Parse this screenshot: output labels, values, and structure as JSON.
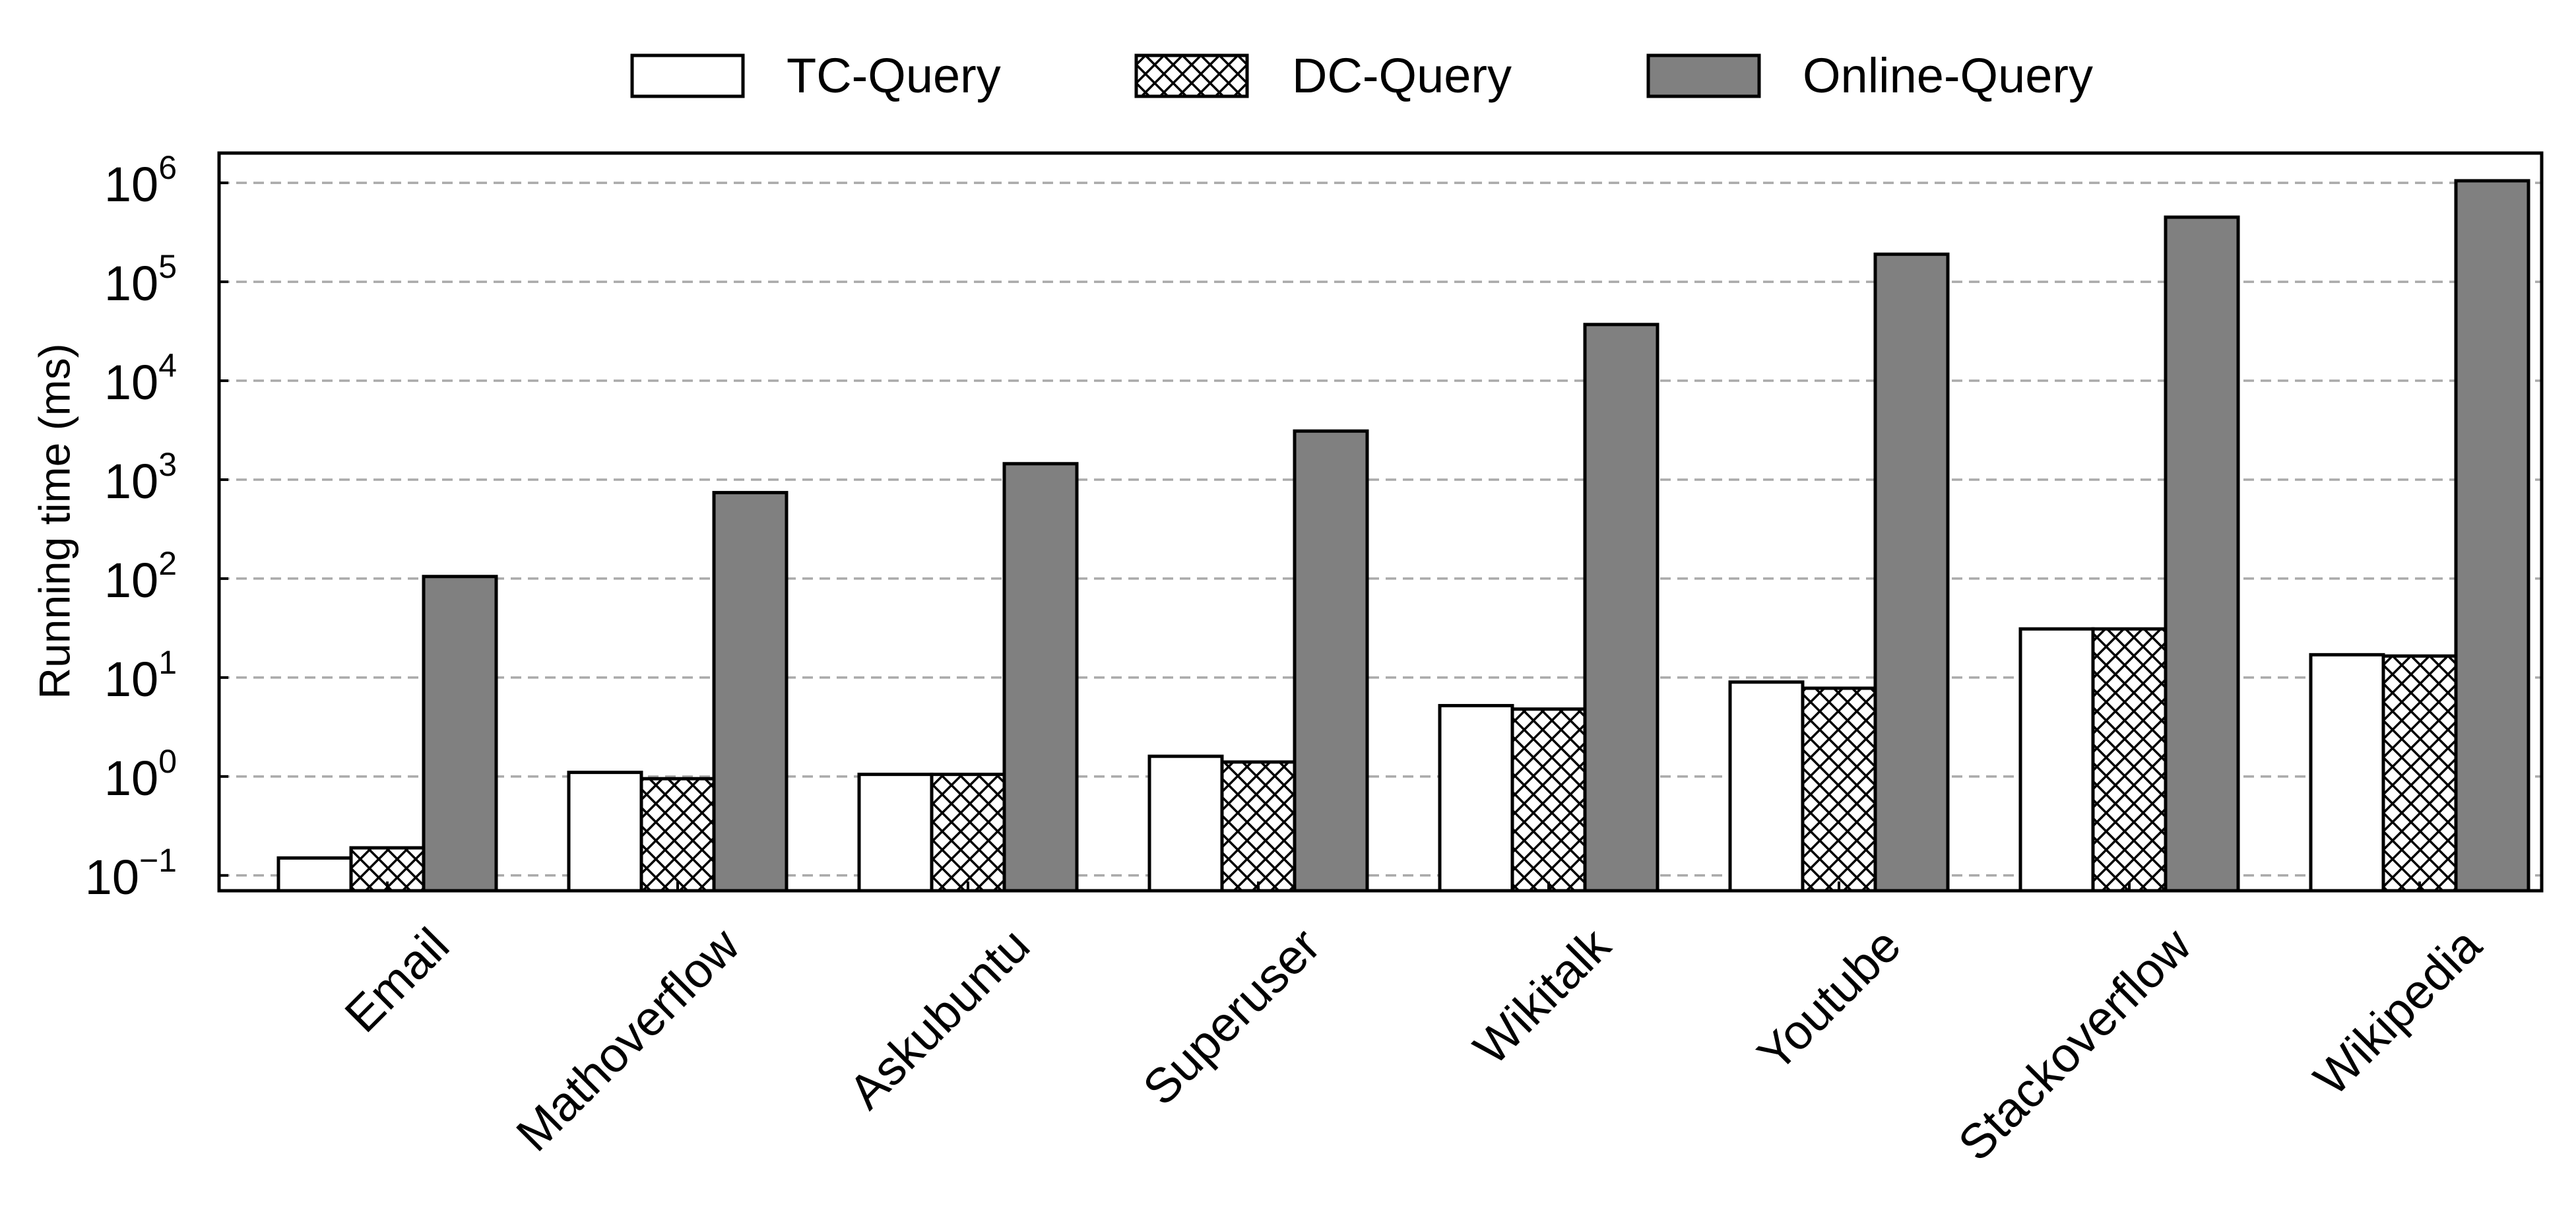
{
  "chart_data": {
    "type": "bar",
    "title": "",
    "xlabel": "",
    "ylabel": "Running time (ms)",
    "yscale": "log",
    "ylim": [
      0.07,
      2000000
    ],
    "yticks": [
      {
        "value": 0.1,
        "base": "10",
        "exp": "−1"
      },
      {
        "value": 1,
        "base": "10",
        "exp": "0"
      },
      {
        "value": 10,
        "base": "10",
        "exp": "1"
      },
      {
        "value": 100,
        "base": "10",
        "exp": "2"
      },
      {
        "value": 1000,
        "base": "10",
        "exp": "3"
      },
      {
        "value": 10000,
        "base": "10",
        "exp": "4"
      },
      {
        "value": 100000,
        "base": "10",
        "exp": "5"
      },
      {
        "value": 1000000,
        "base": "10",
        "exp": "6"
      }
    ],
    "grid": "horizontal-dashed",
    "legend_position": "top-center",
    "categories": [
      "Email",
      "Mathoverflow",
      "Askubuntu",
      "Superuser",
      "Wikitalk",
      "Youtube",
      "Stackoverflow",
      "Wikipedia"
    ],
    "series": [
      {
        "name": "TC-Query",
        "pattern": "none",
        "fill": "#ffffff",
        "values": [
          0.15,
          1.1,
          1.05,
          1.6,
          5.2,
          9.0,
          31,
          17
        ]
      },
      {
        "name": "DC-Query",
        "pattern": "crosshatch",
        "fill": "#ffffff",
        "values": [
          0.19,
          0.95,
          1.05,
          1.4,
          4.8,
          7.8,
          31,
          16.5
        ]
      },
      {
        "name": "Online-Query",
        "pattern": "none",
        "fill": "#808080",
        "values": [
          105,
          740,
          1450,
          3100,
          37000,
          190000,
          450000,
          1050000
        ]
      }
    ]
  }
}
